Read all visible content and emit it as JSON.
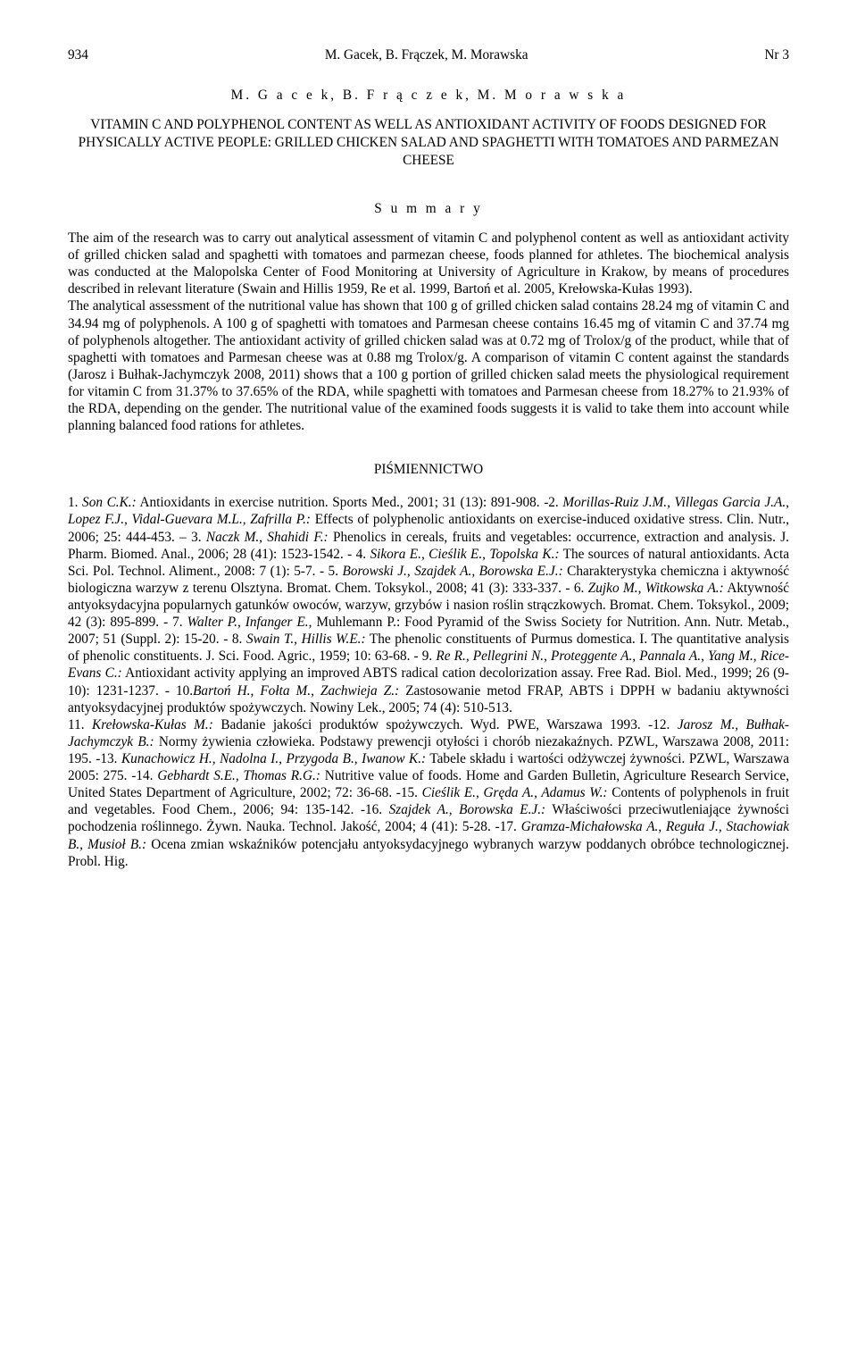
{
  "header": {
    "page_left": "934",
    "running_head": "M. Gacek, B. Frączek, M. Morawska",
    "issue": "Nr 3"
  },
  "contribution": {
    "authors_spaced": "M. G a c e k,  B. F r ą c z e k,  M. M o r a w s k a",
    "title_en": "VITAMIN C AND POLYPHENOL CONTENT AS WELL AS ANTIOXIDANT ACTIVITY OF FOODS DESIGNED FOR PHYSICALLY ACTIVE PEOPLE: GRILLED CHICKEN SALAD AND SPAGHETTI WITH TOMATOES AND PARMEZAN CHEESE",
    "summary_label": "S u m m a r y"
  },
  "summary_text": "The aim of the research was to carry out analytical assessment of vitamin C and polyphenol content as well as antioxidant activity of grilled chicken salad and spaghetti with tomatoes and parmezan cheese, foods planned for athletes. The biochemical analysis was conducted at the Malopolska Center of Food Monitoring at University of Agriculture in Krakow, by means of procedures described in relevant literature (Swain and Hillis 1959, Re et al. 1999, Bartoń et al. 2005, Krełowska-Kułas 1993).\nThe analytical assessment of the nutritional value has shown that 100 g of grilled chicken salad contains 28.24 mg of vitamin C and 34.94 mg of polyphenols. A 100 g of spaghetti with tomatoes and Parmesan cheese contains 16.45 mg of vitamin C and 37.74 mg of polyphenols altogether. The antioxidant activity of  grilled chicken salad was at 0.72 mg of Trolox/g of the product, while that of  spaghetti with tomatoes and Parmesan cheese was at 0.88 mg Trolox/g. A comparison of vitamin C content against the standards (Jarosz i Bułhak-Jachymczyk 2008, 2011) shows that a 100 g portion of grilled chicken salad meets the physiological requirement for vitamin C from 31.37% to 37.65% of the RDA, while spaghetti with tomatoes and Parmesan cheese from 18.27% to 21.93% of the RDA, depending on the gender. The nutritional value of the examined foods suggests it is valid to take them into account while planning balanced food rations for athletes.",
  "references": {
    "heading": "PIŚMIENNICTWO",
    "body_html": "1. <em>Son C.K.:</em> Antioxidants in exercise nutrition. Sports Med., 2001; 31 (13): 891-908. -2. <em>Morillas-Ruiz J.M., Villegas Garcia J.A., Lopez F.J., Vidal-Guevara M.L., Zafrilla P.:</em> Effects of polyphenolic antioxidants on exercise-induced oxidative stress. Clin. Nutr., 2006; 25: 444-453. – 3. <em>Naczk M., Shahidi F.:</em> Phenolics in cereals, fruits and vegetables: occurrence, extraction and analysis. J. Pharm. Biomed. Anal., 2006; 28 (41): 1523-1542. - 4. <em>Sikora E., Cieślik E., Topolska K.:</em> The sources of natural antioxidants. Acta Sci. Pol. Technol. Aliment., 2008: 7 (1): 5-7. - 5. <em>Borowski J., Szajdek A., Borowska E.J.:</em> Charakterystyka chemiczna i aktywność biologiczna warzyw z terenu Olsztyna. Bromat. Chem. Toksykol., 2008; 41 (3): 333-337. - 6. <em>Zujko M., Witkowska A.:</em> Aktywność antyoksydacyjna popularnych gatunków owoców, warzyw, grzybów i nasion roślin strączkowych. Bromat. Chem. Toksykol., 2009; 42 (3): 895-899. - 7. <em>Walter P., Infanger E.,</em> Muhlemann P.: Food Pyramid of the Swiss Society for Nutrition. Ann. Nutr. Metab., 2007; 51 (Suppl. 2): 15-20. - 8. <em>Swain T., Hillis W.E.:</em> The phenolic constituents of Purmus domestica. I. The quantitative analysis of phenolic constituents. J. Sci. Food. Agric., 1959; 10: 63-68. - 9. <em>Re R., Pellegrini N., Proteggente A., Pannala A., Yang M., Rice-Evans C.:</em> Antioxidant activity applying an improved ABTS radical cation decolorization assay. Free Rad. Biol. Med., 1999; 26 (9-10): 1231-1237. - 10.<em>Bartoń H., Fołta M., Zachwieja Z.:</em> Zastosowanie metod FRAP, ABTS i DPPH w badaniu aktywności antyoksydacyjnej produktów spożywczych. Nowiny Lek., 2005; 74 (4): 510-513.<br>11. <em>Krełowska-Kułas M.:</em> Badanie jakości produktów spożywczych. Wyd. PWE, Warszawa 1993. -12. <em>Jarosz M., Bułhak-Jachymczyk B.:</em> Normy żywienia człowieka. Podstawy prewencji otyłości i chorób niezakaźnych. PZWL, Warszawa 2008, 2011: 195. -13. <em>Kunachowicz H., Nadolna I., Przygoda B., Iwanow K.:</em> Tabele składu i wartości odżywczej żywności. PZWL, Warszawa 2005: 275. -14. <em>Gebhardt S.E., Thomas R.G.:</em> Nutritive value of foods. Home and Garden Bulletin, Agriculture Research Service, United States Department of Agriculture, 2002; 72: 36-68. -15. <em>Cieślik E., Gręda A., Adamus W.:</em> Contents of polyphenols in fruit and vegetables. Food Chem., 2006; 94: 135-142. -16. <em>Szajdek A., Borowska E.J.:</em> Właściwości przeciwutleniające żywności pochodzenia roślinnego. Żywn. Nauka. Technol. Jakość, 2004; 4 (41): 5-28. -17. <em>Gramza-Michałowska A., Reguła J., Stachowiak B., Musioł B.:</em> Ocena zmian wskaźników potencjału antyoksydacyjnego wybranych warzyw poddanych obróbce technologicznej. Probl. Hig."
  }
}
